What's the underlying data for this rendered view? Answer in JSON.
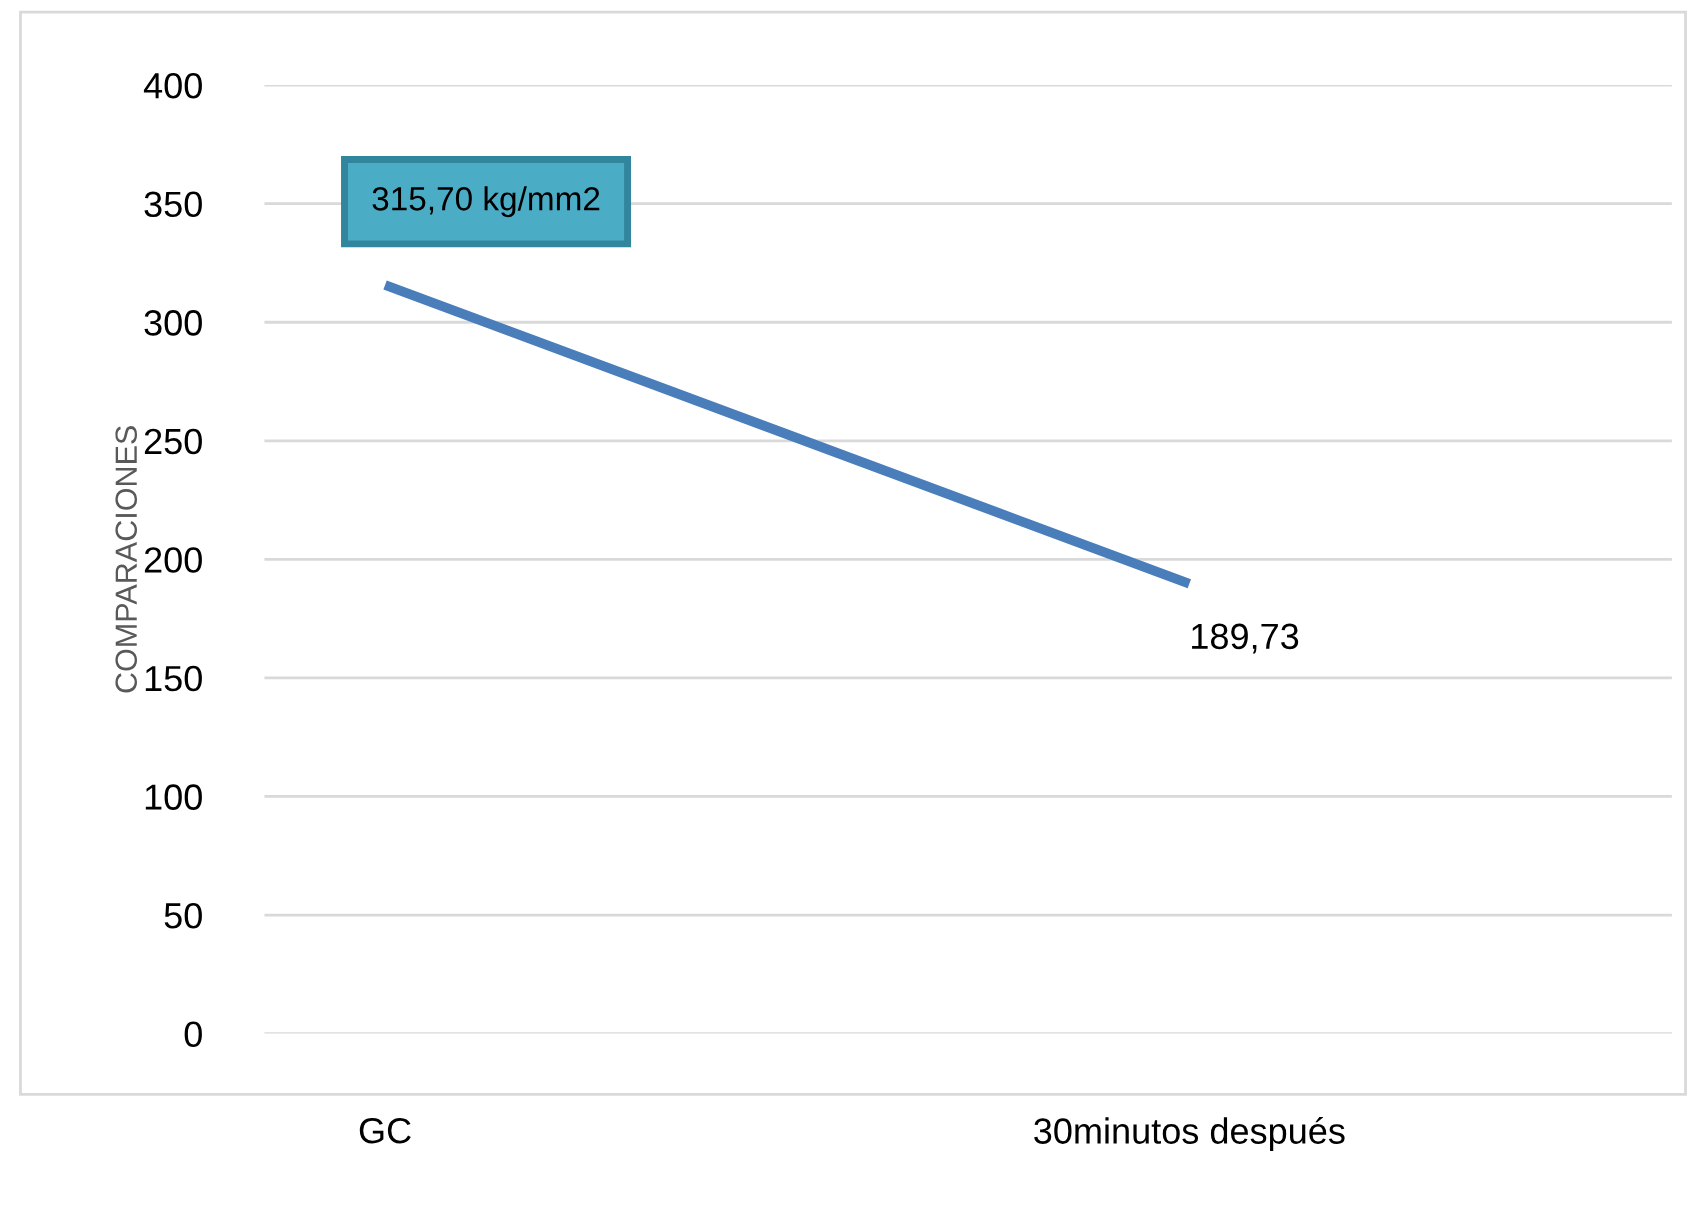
{
  "chart_data": {
    "type": "line",
    "ylabel": "COMPARACIONES",
    "categories": [
      "GC",
      "30minutos después"
    ],
    "series": [
      {
        "color": "#4a7ebb",
        "values": [
          315.7,
          189.73
        ],
        "value_labels": [
          "315,70 kg/mm2",
          "189,73"
        ]
      }
    ],
    "ylim": [
      0,
      400
    ],
    "yticks": [
      0,
      50,
      100,
      150,
      200,
      250,
      300,
      350,
      400
    ],
    "grid": "y",
    "legend": false,
    "marker": "none",
    "line_style": "solid"
  }
}
